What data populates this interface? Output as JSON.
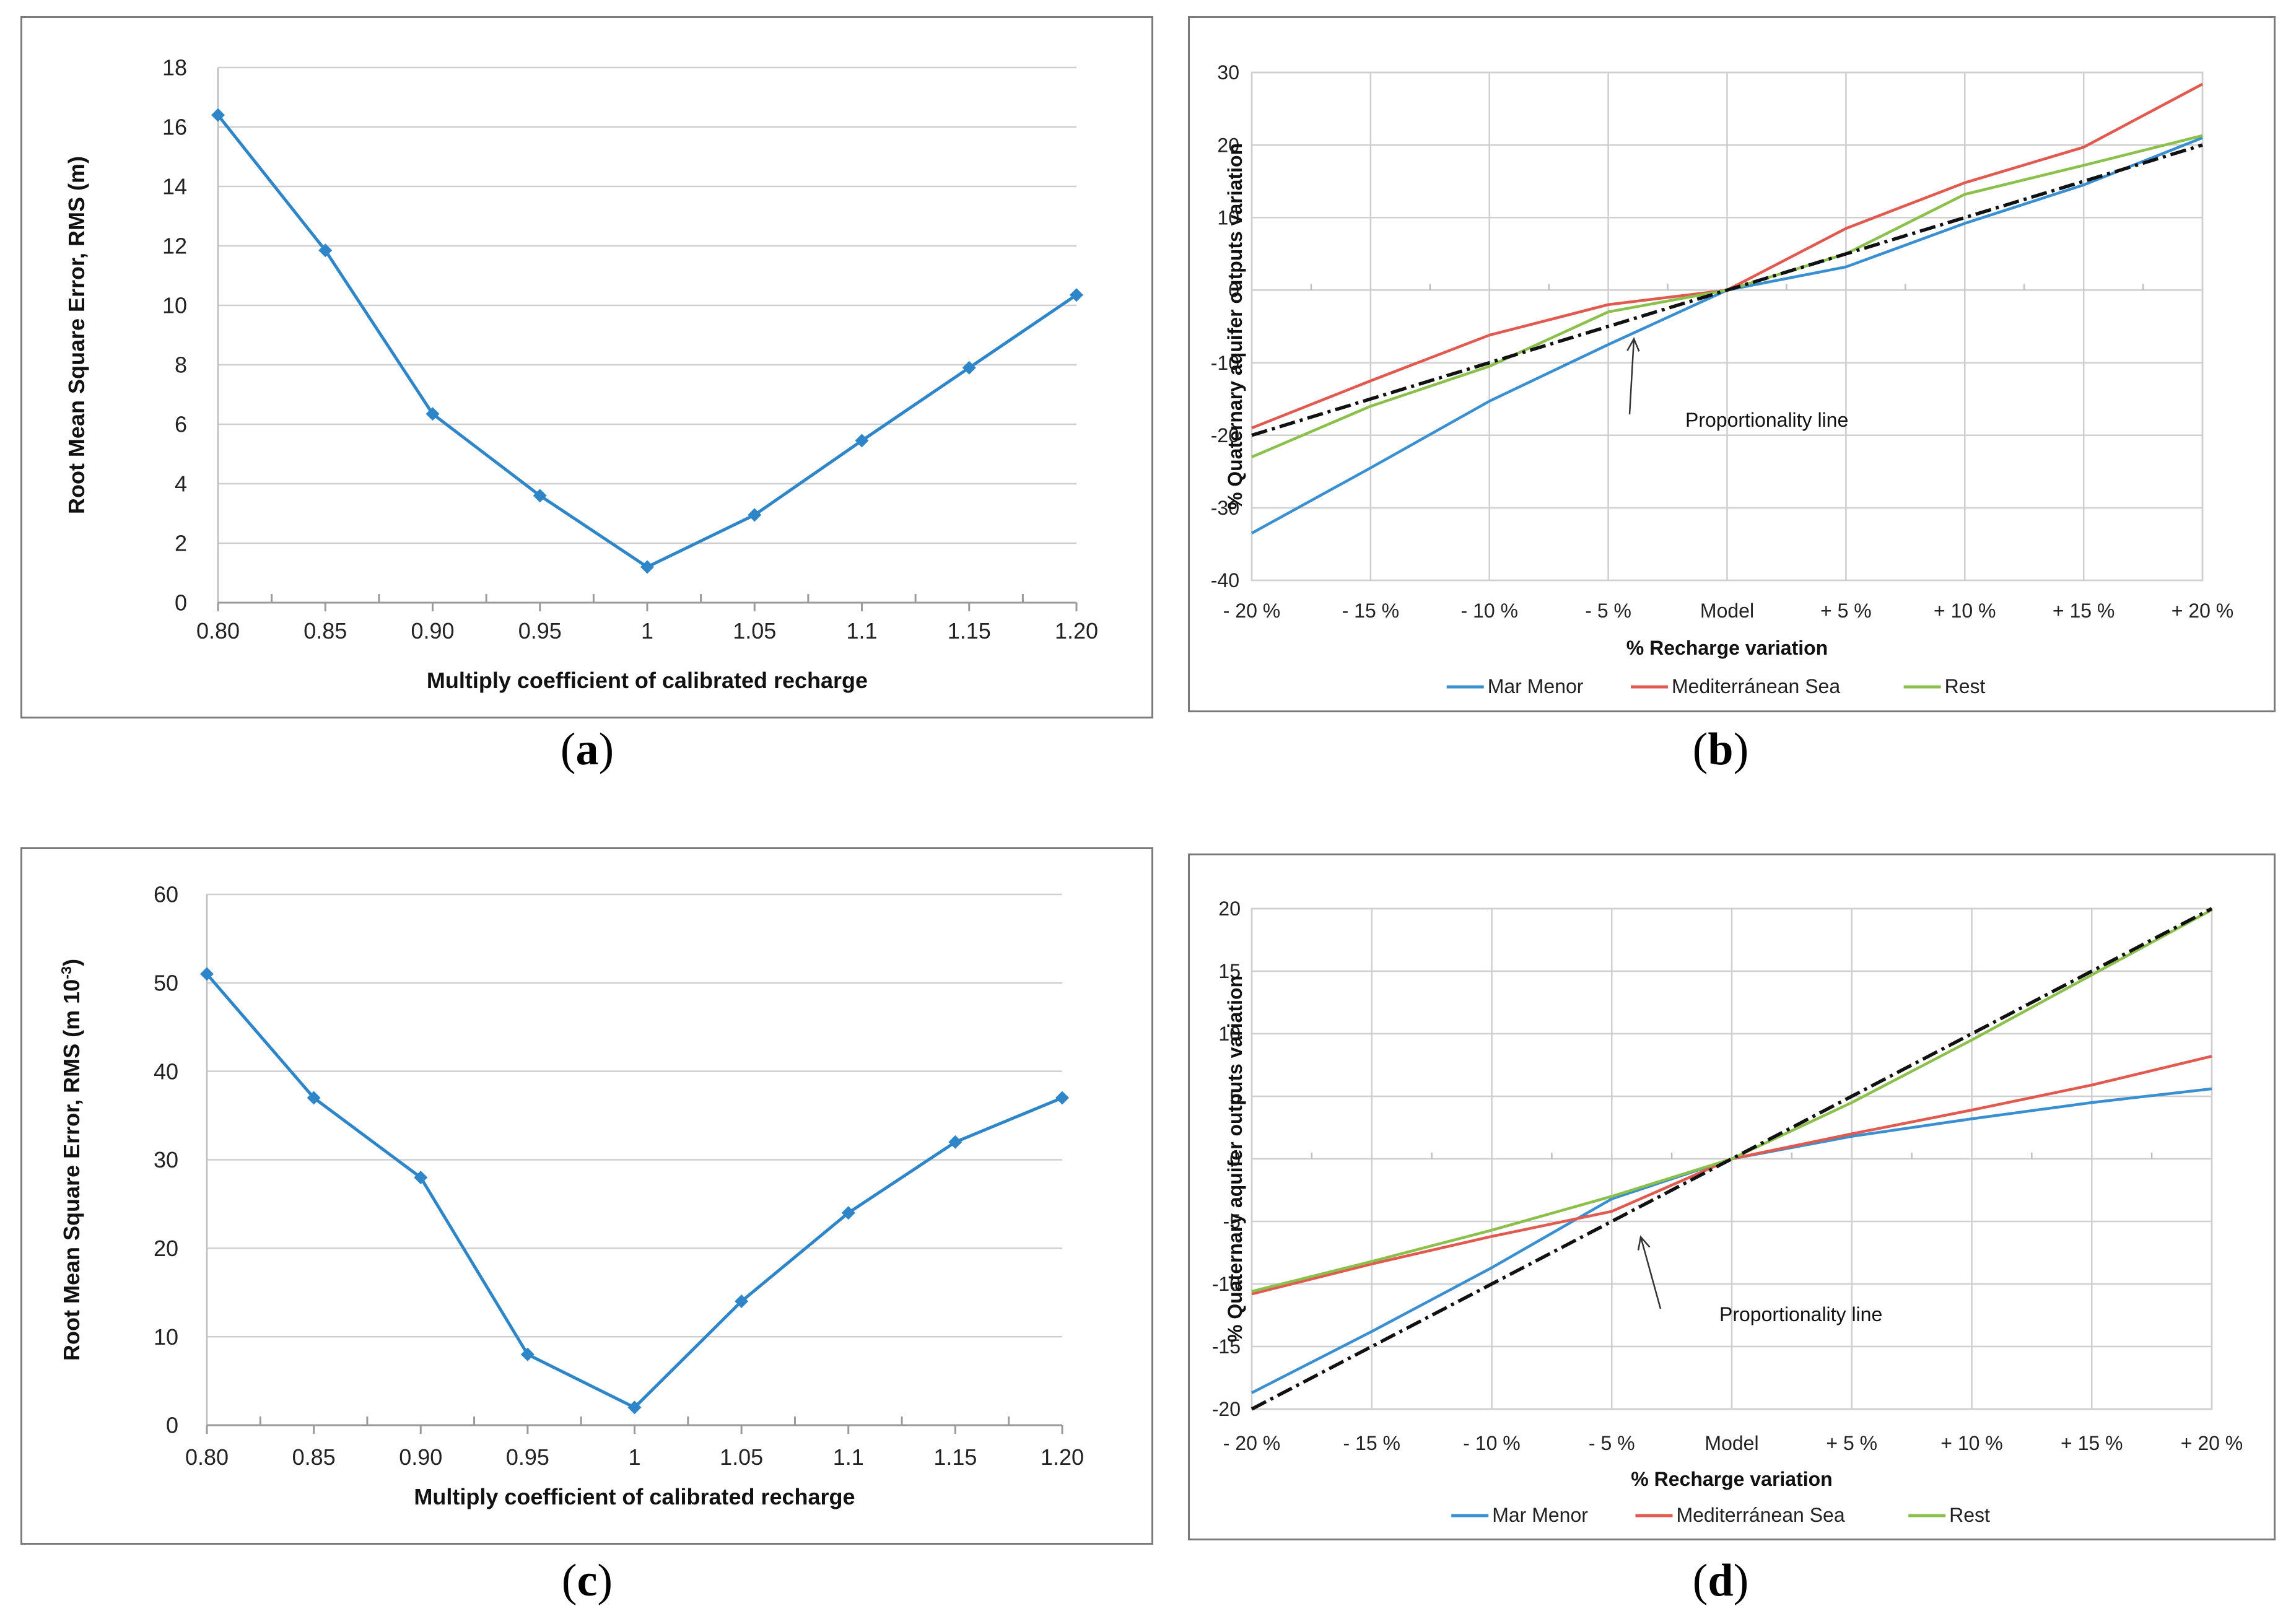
{
  "captions": {
    "a": "a",
    "b": "b",
    "c": "c",
    "d": "d"
  },
  "chart_data": [
    {
      "id": "a",
      "type": "line",
      "xlabel": "Multiply coefficient of calibrated recharge",
      "ylabel": "Root Mean Square Error, RMS (m)",
      "categories": [
        "0.80",
        "0.85",
        "0.90",
        "0.95",
        "1",
        "1.05",
        "1.1",
        "1.15",
        "1.20"
      ],
      "ylim": [
        0,
        18
      ],
      "yticks": [
        "0",
        "2",
        "4",
        "6",
        "8",
        "10",
        "12",
        "14",
        "16",
        "18"
      ],
      "series": [
        {
          "name": "RMS",
          "color": "#2e86c8",
          "values": [
            16.4,
            11.85,
            6.35,
            3.6,
            1.2,
            2.95,
            5.45,
            7.9,
            10.35
          ]
        }
      ]
    },
    {
      "id": "b",
      "type": "line",
      "xlabel": "% Recharge variation",
      "ylabel": "% Quaternary aquifer outputs variation",
      "categories": [
        "- 20 %",
        "- 15 %",
        "- 10 %",
        "- 5 %",
        "Model",
        "+ 5 %",
        "+ 10 %",
        "+ 15 %",
        "+ 20 %"
      ],
      "ylim": [
        -40,
        30
      ],
      "yticks": [
        "-40",
        "-30",
        "-20",
        "-10",
        "0",
        "10",
        "20",
        "30"
      ],
      "series": [
        {
          "name": "Mar Menor",
          "color": "#3a8fd0",
          "values": [
            -33.5,
            -24.5,
            -15.3,
            -7.5,
            0,
            3.2,
            9.2,
            14.5,
            21.0
          ]
        },
        {
          "name": "Mediterránean Sea",
          "color": "#e05a50",
          "values": [
            -19.0,
            -12.5,
            -6.2,
            -2.0,
            0,
            8.5,
            14.8,
            19.7,
            28.4
          ]
        },
        {
          "name": "Rest",
          "color": "#8cc04c",
          "values": [
            -23.0,
            -16.0,
            -10.5,
            -3.0,
            0,
            5.0,
            13.2,
            17.2,
            21.3
          ]
        }
      ],
      "reference_line": {
        "name": "Proportionality line",
        "color": "#111111",
        "values": [
          -20,
          -15,
          -10,
          -5,
          0,
          5,
          10,
          15,
          20
        ]
      },
      "annotation": {
        "text": "Proportionality line"
      }
    },
    {
      "id": "c",
      "type": "line",
      "xlabel": "Multiply coefficient of calibrated recharge",
      "ylabel": "Root Mean Square Error, RMS (m 10",
      "ylabel_sup": "-3",
      "ylabel_end": ")",
      "categories": [
        "0.80",
        "0.85",
        "0.90",
        "0.95",
        "1",
        "1.05",
        "1.1",
        "1.15",
        "1.20"
      ],
      "ylim": [
        0,
        60
      ],
      "yticks": [
        "0",
        "10",
        "20",
        "30",
        "40",
        "50",
        "60"
      ],
      "series": [
        {
          "name": "RMS",
          "color": "#2e86c8",
          "values": [
            51,
            37,
            28,
            8,
            2,
            14,
            24,
            32,
            37
          ]
        }
      ]
    },
    {
      "id": "d",
      "type": "line",
      "xlabel": "% Recharge variation",
      "ylabel": "% Quaternary aquifer outputs variation",
      "categories": [
        "- 20 %",
        "- 15 %",
        "- 10 %",
        "- 5 %",
        "Model",
        "+ 5 %",
        "+ 10 %",
        "+ 15 %",
        "+ 20 %"
      ],
      "ylim": [
        -20,
        20
      ],
      "yticks": [
        "-20",
        "-15",
        "-10",
        "-5",
        "0",
        "5",
        "10",
        "15",
        "20"
      ],
      "series": [
        {
          "name": "Mar Menor",
          "color": "#3a8fd0",
          "values": [
            -18.7,
            -13.8,
            -8.7,
            -3.2,
            0,
            1.8,
            3.2,
            4.5,
            5.6
          ]
        },
        {
          "name": "Mediterránean Sea",
          "color": "#e05a50",
          "values": [
            -10.8,
            -8.4,
            -6.2,
            -4.2,
            0,
            2.0,
            3.9,
            5.9,
            8.2
          ]
        },
        {
          "name": "Rest",
          "color": "#8cc04c",
          "values": [
            -10.6,
            -8.2,
            -5.7,
            -3.0,
            0,
            4.5,
            9.5,
            14.7,
            19.9
          ]
        }
      ],
      "reference_line": {
        "name": "Proportionality line",
        "color": "#111111",
        "values": [
          -20,
          -15,
          -10,
          -5,
          0,
          5,
          10,
          15,
          20
        ]
      },
      "annotation": {
        "text": "Proportionality line"
      }
    }
  ]
}
